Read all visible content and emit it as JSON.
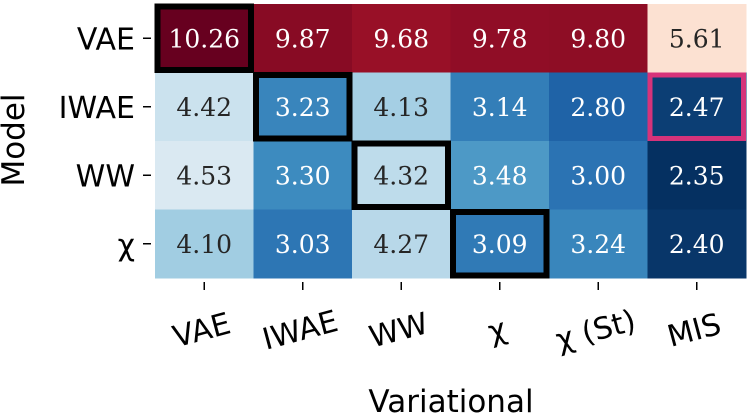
{
  "chart_data": {
    "type": "heatmap",
    "xlabel": "Variational",
    "ylabel": "Model",
    "x_categories": [
      "VAE",
      "IWAE",
      "WW",
      "χ",
      "χ (St)",
      "MIS"
    ],
    "y_categories": [
      "VAE",
      "IWAE",
      "WW",
      "χ"
    ],
    "values": [
      [
        10.26,
        9.87,
        9.68,
        9.78,
        9.8,
        5.61
      ],
      [
        4.42,
        3.23,
        4.13,
        3.14,
        2.8,
        2.47
      ],
      [
        4.53,
        3.3,
        4.32,
        3.48,
        3.0,
        2.35
      ],
      [
        4.1,
        3.03,
        4.27,
        3.09,
        3.24,
        2.4
      ]
    ],
    "colormap": "RdBu",
    "highlight_diagonal_color": "#000000",
    "highlight_best": {
      "row": 1,
      "col": 5,
      "color": "#d6337a"
    }
  }
}
